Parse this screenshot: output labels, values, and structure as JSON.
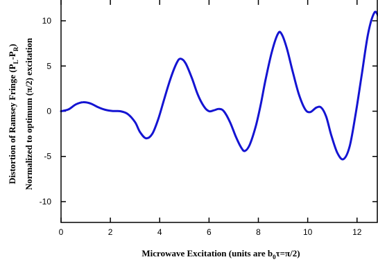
{
  "chart_data": {
    "type": "line",
    "title": "",
    "xlabel_parts": {
      "main": "Microwave Excitation (units are b",
      "sub": "0",
      "tail": "τ=π/2)"
    },
    "ylabel_line1_parts": {
      "main": "Distortion of Ramsey Fringe (P",
      "sub1": "L",
      "mid": "-P",
      "sub2": "R",
      "tail": ")"
    },
    "ylabel_line2": "Normalized to optimum (π/2) excitation",
    "xlim": [
      0,
      12.85
    ],
    "ylim": [
      -12.3,
      12.3
    ],
    "x_ticks": [
      0,
      2,
      4,
      6,
      8,
      10,
      12
    ],
    "y_ticks": [
      10,
      5,
      0,
      -5,
      -10
    ],
    "x_tick_labels": [
      "0",
      "2",
      "4",
      "6",
      "8",
      "10",
      "12"
    ],
    "y_tick_labels": [
      "10",
      "5",
      "0",
      "-5",
      "-10"
    ],
    "grid": false,
    "series": [
      {
        "color": "#1414d2",
        "points": [
          [
            0.0,
            0.0
          ],
          [
            0.3,
            0.2
          ],
          [
            0.6,
            0.75
          ],
          [
            0.9,
            1.0
          ],
          [
            1.2,
            0.85
          ],
          [
            1.5,
            0.45
          ],
          [
            1.8,
            0.15
          ],
          [
            2.1,
            0.02
          ],
          [
            2.4,
            0.0
          ],
          [
            2.7,
            -0.3
          ],
          [
            3.0,
            -1.2
          ],
          [
            3.2,
            -2.3
          ],
          [
            3.45,
            -3.0
          ],
          [
            3.7,
            -2.5
          ],
          [
            3.95,
            -0.8
          ],
          [
            4.2,
            1.5
          ],
          [
            4.45,
            3.7
          ],
          [
            4.7,
            5.4
          ],
          [
            4.85,
            5.8
          ],
          [
            5.05,
            5.3
          ],
          [
            5.3,
            3.7
          ],
          [
            5.55,
            1.8
          ],
          [
            5.8,
            0.5
          ],
          [
            6.0,
            0.0
          ],
          [
            6.2,
            0.1
          ],
          [
            6.4,
            0.25
          ],
          [
            6.6,
            0.0
          ],
          [
            6.85,
            -1.2
          ],
          [
            7.1,
            -2.9
          ],
          [
            7.3,
            -4.0
          ],
          [
            7.45,
            -4.4
          ],
          [
            7.65,
            -3.7
          ],
          [
            7.9,
            -1.6
          ],
          [
            8.1,
            0.8
          ],
          [
            8.3,
            3.6
          ],
          [
            8.55,
            6.6
          ],
          [
            8.8,
            8.6
          ],
          [
            8.95,
            8.5
          ],
          [
            9.15,
            7.0
          ],
          [
            9.4,
            4.3
          ],
          [
            9.65,
            1.8
          ],
          [
            9.9,
            0.2
          ],
          [
            10.1,
            -0.1
          ],
          [
            10.35,
            0.4
          ],
          [
            10.55,
            0.4
          ],
          [
            10.75,
            -0.6
          ],
          [
            10.95,
            -2.6
          ],
          [
            11.2,
            -4.6
          ],
          [
            11.45,
            -5.3
          ],
          [
            11.7,
            -3.9
          ],
          [
            11.95,
            -0.2
          ],
          [
            12.2,
            4.2
          ],
          [
            12.45,
            8.6
          ],
          [
            12.7,
            10.9
          ],
          [
            12.85,
            10.6
          ]
        ]
      }
    ]
  }
}
